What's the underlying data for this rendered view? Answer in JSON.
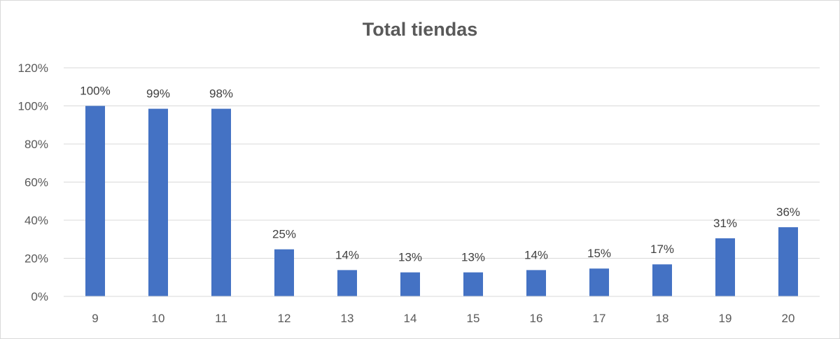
{
  "chart_data": {
    "type": "bar",
    "title": "Total tiendas",
    "xlabel": "",
    "ylabel": "",
    "categories": [
      "9",
      "10",
      "11",
      "12",
      "13",
      "14",
      "15",
      "16",
      "17",
      "18",
      "19",
      "20"
    ],
    "values": [
      100,
      98.5,
      98.5,
      24.7,
      13.8,
      12.6,
      12.6,
      13.8,
      14.6,
      16.8,
      30.5,
      36.3
    ],
    "data_labels": [
      "100%",
      "99%",
      "98%",
      "25%",
      "14%",
      "13%",
      "13%",
      "14%",
      "15%",
      "17%",
      "31%",
      "36%"
    ],
    "ylim": [
      0,
      120
    ],
    "yticks": [
      0,
      20,
      40,
      60,
      80,
      100,
      120
    ],
    "ytick_labels": [
      "0%",
      "20%",
      "40%",
      "60%",
      "80%",
      "100%",
      "120%"
    ],
    "bar_color": "#4472c4",
    "grid": true,
    "legend": "none"
  }
}
